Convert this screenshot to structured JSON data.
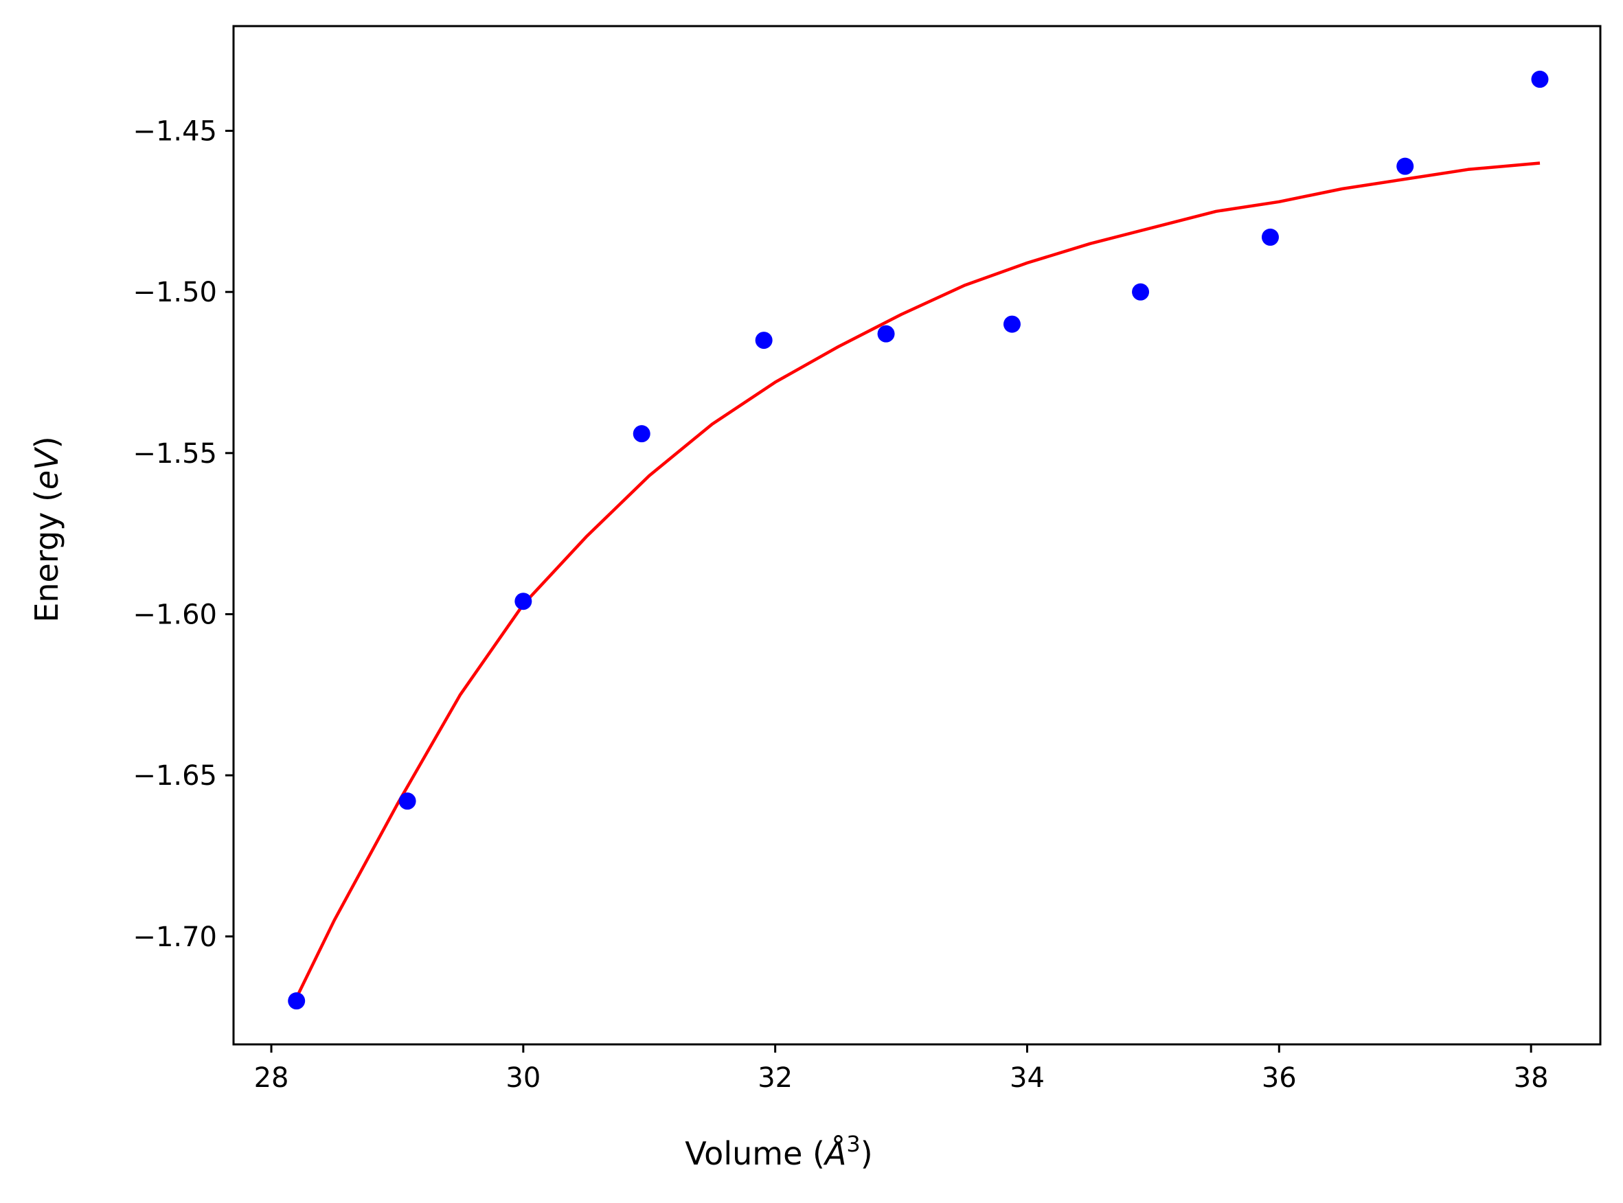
{
  "chart_data": {
    "type": "scatter",
    "xlabel": "Volume (",
    "xlabel_symbol": "Å",
    "xlabel_power": "3",
    "xlabel_suffix": ")",
    "ylabel": "Energy (",
    "ylabel_unit": "eV",
    "ylabel_suffix": ")",
    "xlim": [
      27.7,
      38.55
    ],
    "ylim": [
      -1.7335,
      -1.4175
    ],
    "grid": false,
    "legend": "none",
    "x_ticks": [
      28,
      30,
      32,
      34,
      36,
      38
    ],
    "x_tick_labels": [
      "28",
      "30",
      "32",
      "34",
      "36",
      "38"
    ],
    "y_ticks": [
      -1.7,
      -1.65,
      -1.6,
      -1.55,
      -1.5,
      -1.45
    ],
    "y_tick_labels": [
      "−1.70",
      "−1.65",
      "−1.60",
      "−1.55",
      "−1.50",
      "−1.45"
    ],
    "series": [
      {
        "kind": "points",
        "color": "#0000ff",
        "x": [
          28.2,
          29.08,
          30.0,
          30.94,
          31.91,
          32.88,
          33.88,
          34.9,
          35.93,
          37.0,
          38.07
        ],
        "y": [
          -1.72,
          -1.658,
          -1.596,
          -1.544,
          -1.515,
          -1.513,
          -1.51,
          -1.5,
          -1.483,
          -1.461,
          -1.434
        ]
      },
      {
        "kind": "fit-line",
        "color": "#ff0000",
        "x": [
          28.2,
          28.5,
          29.0,
          29.5,
          30.0,
          30.5,
          31.0,
          31.5,
          32.0,
          32.5,
          33.0,
          33.5,
          34.0,
          34.5,
          35.0,
          35.5,
          36.0,
          36.5,
          37.0,
          37.5,
          38.07
        ],
        "y": [
          -1.719,
          -1.695,
          -1.659,
          -1.625,
          -1.597,
          -1.576,
          -1.557,
          -1.541,
          -1.528,
          -1.517,
          -1.507,
          -1.498,
          -1.491,
          -1.485,
          -1.48,
          -1.475,
          -1.472,
          -1.468,
          -1.465,
          -1.462,
          -1.46
        ]
      }
    ]
  }
}
